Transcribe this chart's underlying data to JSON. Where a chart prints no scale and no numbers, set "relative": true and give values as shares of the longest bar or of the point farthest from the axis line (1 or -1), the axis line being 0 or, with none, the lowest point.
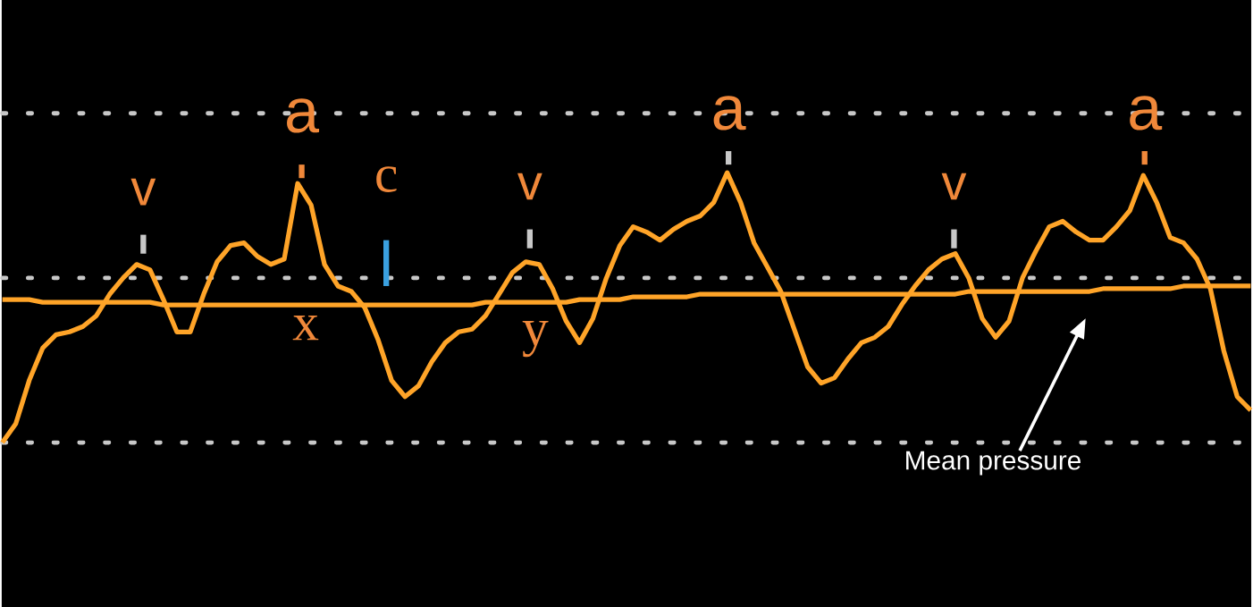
{
  "chart_data": {
    "type": "line",
    "relative": true,
    "categories": [
      null,
      null,
      null,
      null,
      null,
      null,
      null,
      null,
      null,
      null,
      null,
      null,
      null,
      null,
      null,
      null,
      null,
      null,
      null,
      null,
      null,
      null,
      null,
      null,
      null,
      null,
      null,
      null,
      null,
      null,
      null,
      null,
      null,
      null,
      null,
      null,
      null,
      null,
      null,
      null,
      null,
      null,
      null,
      null,
      null,
      null,
      null,
      null,
      null,
      null,
      null,
      null,
      null,
      null,
      null,
      null,
      null,
      null,
      null,
      null,
      null,
      null,
      null,
      null,
      null,
      null,
      null,
      null,
      null,
      null,
      null,
      null,
      null,
      null,
      null,
      null,
      null,
      null,
      null,
      null,
      null,
      null,
      null,
      null,
      null,
      null,
      null,
      null,
      null,
      null,
      null,
      null,
      null,
      null
    ],
    "series": [
      {
        "color": "#ffa428",
        "values": [
          0.0,
          0.07,
          0.23,
          0.35,
          0.4,
          0.41,
          0.43,
          0.47,
          0.55,
          0.61,
          0.66,
          0.64,
          0.53,
          0.41,
          0.41,
          0.55,
          0.67,
          0.73,
          0.74,
          0.69,
          0.66,
          0.68,
          0.96,
          0.88,
          0.66,
          0.58,
          0.56,
          0.5,
          0.38,
          0.23,
          0.17,
          0.21,
          0.3,
          0.37,
          0.41,
          0.42,
          0.47,
          0.55,
          0.63,
          0.67,
          0.66,
          0.57,
          0.45,
          0.37,
          0.46,
          0.61,
          0.73,
          0.8,
          0.78,
          0.75,
          0.79,
          0.82,
          0.84,
          0.89,
          1.0,
          0.89,
          0.74,
          0.65,
          0.56,
          0.42,
          0.28,
          0.22,
          0.24,
          0.31,
          0.37,
          0.39,
          0.43,
          0.51,
          0.58,
          0.64,
          0.68,
          0.7,
          0.61,
          0.46,
          0.39,
          0.45,
          0.61,
          0.71,
          0.8,
          0.82,
          0.78,
          0.75,
          0.75,
          0.8,
          0.86,
          0.99,
          0.89,
          0.76,
          0.74,
          0.68,
          0.57,
          0.34,
          0.17,
          0.12
        ]
      },
      {
        "name": "Mean pressure",
        "color": "#ffa428",
        "values": [
          0.53,
          0.53,
          0.53,
          0.52,
          0.52,
          0.52,
          0.52,
          0.52,
          0.52,
          0.52,
          0.52,
          0.52,
          0.51,
          0.51,
          0.51,
          0.51,
          0.51,
          0.51,
          0.51,
          0.51,
          0.51,
          0.51,
          0.51,
          0.51,
          0.51,
          0.51,
          0.51,
          0.51,
          0.51,
          0.51,
          0.51,
          0.51,
          0.51,
          0.51,
          0.51,
          0.51,
          0.52,
          0.52,
          0.52,
          0.52,
          0.52,
          0.52,
          0.52,
          0.53,
          0.53,
          0.53,
          0.53,
          0.54,
          0.54,
          0.54,
          0.54,
          0.54,
          0.55,
          0.55,
          0.55,
          0.55,
          0.55,
          0.55,
          0.55,
          0.55,
          0.55,
          0.55,
          0.55,
          0.55,
          0.55,
          0.55,
          0.55,
          0.55,
          0.55,
          0.55,
          0.55,
          0.55,
          0.56,
          0.56,
          0.56,
          0.56,
          0.56,
          0.56,
          0.56,
          0.56,
          0.56,
          0.56,
          0.57,
          0.57,
          0.57,
          0.57,
          0.57,
          0.57,
          0.58,
          0.58,
          0.58,
          0.58,
          0.58,
          0.58
        ]
      }
    ],
    "ref_lines": [
      {
        "axis": "y",
        "value": 1.22,
        "color": "#c8c8c8",
        "line_style": "dotted"
      },
      {
        "axis": "y",
        "value": 0.61,
        "color": "#c8c8c8",
        "line_style": "dotted"
      },
      {
        "axis": "y",
        "value": 0,
        "color": "#c8c8c8",
        "line_style": "dotted"
      }
    ],
    "annotations": [
      "a",
      "a",
      "a",
      "v",
      "v",
      "v",
      "c",
      "x",
      "y"
    ],
    "line_style": "solid",
    "marker": "none"
  }
}
